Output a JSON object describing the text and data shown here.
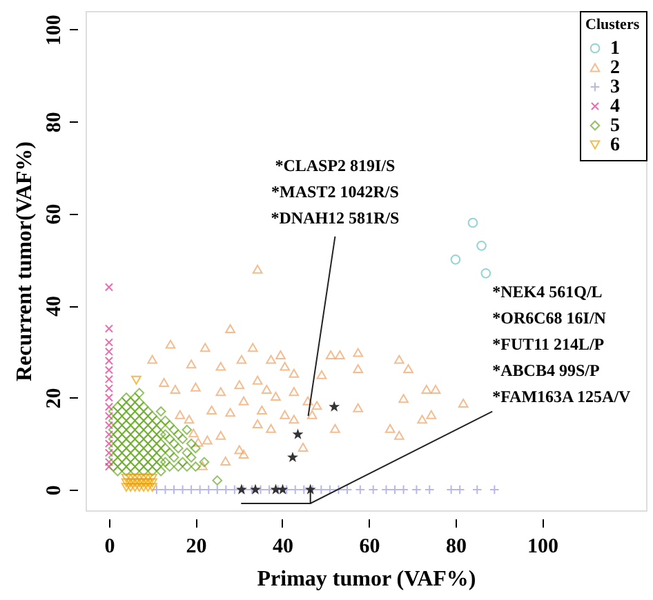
{
  "chart_data": {
    "type": "scatter",
    "xlabel": "Primay tumor (VAF%)",
    "ylabel": "Recurrent tumor(VAF%)",
    "legend_title": "Clusters",
    "legend": "top right",
    "grid": false,
    "xlim": [
      -5.4,
      124
    ],
    "ylim": [
      -4.5,
      104
    ],
    "xticks": [
      0,
      20,
      40,
      60,
      80,
      100
    ],
    "yticks": [
      0,
      20,
      40,
      60,
      80,
      100
    ],
    "series": [
      {
        "name": "1",
        "color": "#66c2c2",
        "marker": "circle",
        "x": [
          84,
          80,
          86,
          87
        ],
        "values": [
          58,
          50,
          53,
          47
        ]
      },
      {
        "name": "2",
        "color": "#f0a060",
        "marker": "triangle",
        "x": [
          28,
          14.2,
          22.2,
          10,
          19,
          25.8,
          30.6,
          33.2,
          37.4,
          39.6,
          40.6,
          42.7,
          51.2,
          53.3,
          57.5,
          57.5,
          67,
          69.1,
          49.1,
          12.7,
          15.3,
          20,
          25.8,
          30.1,
          34.3,
          36.4,
          38.5,
          42.7,
          45.9,
          48,
          57.5,
          68,
          73.3,
          75.4,
          81.8,
          16.4,
          18.5,
          23.7,
          28,
          31.1,
          35.3,
          40.6,
          42.7,
          46.9,
          19.5,
          22.7,
          25.8,
          30.1,
          34.3,
          37.4,
          52.2,
          64.9,
          67,
          72.3,
          74.4,
          26.9,
          31.1,
          44.8,
          21.6,
          20.6,
          34.3
        ],
        "values": [
          35,
          31.6,
          30.9,
          28.3,
          27.3,
          26.8,
          28.3,
          30.9,
          28.3,
          29.3,
          26.8,
          25.3,
          29.3,
          29.3,
          29.8,
          26.3,
          28.3,
          26.3,
          25,
          23.3,
          21.8,
          22.3,
          21.3,
          22.8,
          23.8,
          21.8,
          20.3,
          21.3,
          19.3,
          18.3,
          17.8,
          19.8,
          21.8,
          21.8,
          18.8,
          16.3,
          15.3,
          17.3,
          16.8,
          19.3,
          17.3,
          16.3,
          15.3,
          16.3,
          12.3,
          10.8,
          11.8,
          8.7,
          14.3,
          13.3,
          13.3,
          13.3,
          11.8,
          15.3,
          16.3,
          6.2,
          7.7,
          9.2,
          5.2,
          10.3,
          47.9
        ]
      },
      {
        "name": "3",
        "color": "#9999e0",
        "marker": "plus",
        "x": [
          11,
          13,
          15,
          17,
          19,
          21,
          23,
          25,
          27,
          29,
          31,
          33,
          35,
          37,
          39,
          41,
          43,
          45,
          47,
          49,
          51,
          53,
          55,
          58,
          61,
          64,
          66,
          68,
          71,
          74,
          79,
          81,
          85,
          89
        ],
        "values": [
          0,
          0,
          0,
          0,
          0,
          0,
          0,
          0,
          0,
          0,
          0,
          0,
          0,
          0,
          0,
          0,
          0,
          0,
          0,
          0,
          0,
          0,
          0,
          0,
          0,
          0,
          0,
          0,
          0,
          0,
          0,
          0,
          0,
          0
        ]
      },
      {
        "name": "4",
        "color": "#e0308a",
        "marker": "x",
        "x": [
          0,
          0,
          0,
          0,
          0,
          0,
          0,
          0,
          0,
          0,
          0,
          0,
          0,
          0,
          0,
          0,
          0
        ],
        "values": [
          44,
          35,
          32,
          30,
          28,
          26,
          24,
          22,
          20,
          18,
          16,
          14,
          12,
          10,
          8,
          6,
          5
        ]
      },
      {
        "name": "5",
        "color": "#66aa22",
        "marker": "diamond",
        "x": [
          1,
          1,
          1,
          1,
          1,
          1,
          1,
          2,
          2,
          2,
          2,
          2,
          2,
          2,
          2,
          3,
          3,
          3,
          3,
          3,
          3,
          3,
          3,
          4,
          4,
          4,
          4,
          4,
          4,
          4,
          4,
          4,
          5,
          5,
          5,
          5,
          5,
          5,
          5,
          5,
          6,
          6,
          6,
          6,
          6,
          6,
          6,
          6,
          6,
          7,
          7,
          7,
          7,
          7,
          7,
          7,
          7,
          7,
          8,
          8,
          8,
          8,
          8,
          8,
          8,
          8,
          9,
          9,
          9,
          9,
          9,
          9,
          9,
          10,
          10,
          10,
          10,
          10,
          10,
          10,
          11,
          11,
          11,
          11,
          11,
          11,
          12,
          12,
          12,
          12,
          12,
          12,
          12,
          13,
          13,
          13,
          13,
          14,
          14,
          14,
          14,
          15,
          15,
          15,
          16,
          16,
          16,
          17,
          17,
          18,
          18,
          18,
          19,
          19,
          20,
          20,
          22,
          25
        ],
        "values": [
          5,
          7,
          9,
          11,
          13,
          15,
          17,
          4,
          6,
          8,
          10,
          12,
          14,
          16,
          18,
          5,
          7,
          9,
          11,
          13,
          15,
          17,
          19,
          4,
          6,
          8,
          10,
          12,
          14,
          16,
          18,
          20,
          5,
          7,
          9,
          11,
          13,
          15,
          17,
          19,
          4,
          6,
          8,
          10,
          12,
          14,
          16,
          18,
          20,
          5,
          7,
          9,
          11,
          13,
          15,
          17,
          19,
          21,
          4,
          6,
          8,
          10,
          12,
          14,
          16,
          18,
          5,
          7,
          9,
          11,
          13,
          15,
          17,
          4,
          6,
          8,
          10,
          12,
          14,
          16,
          5,
          7,
          9,
          11,
          13,
          15,
          4,
          6,
          8,
          10,
          12,
          14,
          17,
          6,
          9,
          12,
          15,
          5,
          8,
          11,
          14,
          7,
          10,
          13,
          5,
          9,
          12,
          6,
          11,
          5,
          8,
          13,
          7,
          10,
          5,
          9,
          6,
          2
        ]
      },
      {
        "name": "6",
        "color": "#f0a000",
        "marker": "triangle-down",
        "x": [
          4,
          5,
          6,
          7,
          8,
          9,
          10,
          4,
          5,
          6,
          7,
          8,
          9,
          10,
          4,
          5,
          6,
          7,
          8,
          9,
          10,
          6.3
        ],
        "values": [
          0.5,
          0.5,
          0.5,
          0.5,
          0.5,
          0.5,
          0.5,
          1.5,
          1.5,
          1.5,
          1.5,
          1.5,
          1.5,
          1.5,
          2.5,
          2.5,
          2.5,
          2.5,
          2.5,
          2.5,
          2.5,
          23.8
        ]
      },
      {
        "color": "#333333",
        "marker": "star",
        "x": [
          52,
          43.6,
          42.4,
          30.6,
          33.8,
          38.5,
          40.1,
          46.5
        ],
        "values": [
          18,
          12,
          7,
          0,
          0,
          0,
          0,
          0
        ]
      }
    ],
    "annotations": [
      {
        "text": "*CLASP2 819I/S\n*MAST2 1042R/S\n*DNAH12 581R/S",
        "x": 46,
        "y": 16
      },
      {
        "text": "*NEK4 561Q/L\n*OR6C68 16I/N\n*FUT11 214L/P\n*ABCB4 99S/P\n*FAM163A 125A/V",
        "x": 46.5,
        "y": 0
      }
    ]
  }
}
